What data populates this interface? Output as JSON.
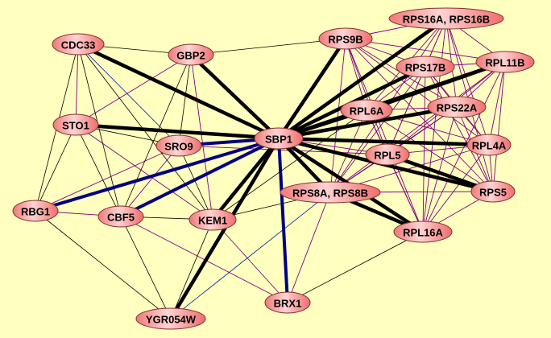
{
  "colors": {
    "background": "#ffffc0",
    "node_fill_light": "#ffd0d0",
    "node_fill_dark": "#f07070",
    "node_stroke": "#803030",
    "edge_black": "#000000",
    "edge_blue": "#000080",
    "edge_purple": "#800080",
    "edge_thin_blue": "#0020a0"
  },
  "nodes": [
    {
      "id": "CDC33",
      "label": "CDC33"
    },
    {
      "id": "GBP2",
      "label": "GBP2"
    },
    {
      "id": "STO1",
      "label": "STO1"
    },
    {
      "id": "SRO9",
      "label": "SRO9"
    },
    {
      "id": "SBP1",
      "label": "SBP1"
    },
    {
      "id": "RBG1",
      "label": "RBG1"
    },
    {
      "id": "CBF5",
      "label": "CBF5"
    },
    {
      "id": "KEM1",
      "label": "KEM1"
    },
    {
      "id": "YGR054W",
      "label": "YGR054W"
    },
    {
      "id": "BRX1",
      "label": "BRX1"
    },
    {
      "id": "RPS9B",
      "label": "RPS9B"
    },
    {
      "id": "RPS16",
      "label": "RPS16A, RPS16B"
    },
    {
      "id": "RPS17B",
      "label": "RPS17B"
    },
    {
      "id": "RPL11B",
      "label": "RPL11B"
    },
    {
      "id": "RPL6A",
      "label": "RPL6A"
    },
    {
      "id": "RPS22A",
      "label": "RPS22A"
    },
    {
      "id": "RPL5",
      "label": "RPL5"
    },
    {
      "id": "RPL4A",
      "label": "RPL4A"
    },
    {
      "id": "RPS8",
      "label": "RPS8A, RPS8B"
    },
    {
      "id": "RPS5",
      "label": "RPS5"
    },
    {
      "id": "RPL16A",
      "label": "RPL16A"
    }
  ],
  "edges": [
    [
      "CDC33",
      "GBP2",
      "thin-black"
    ],
    [
      "GBP2",
      "RPS9B",
      "thin-black"
    ],
    [
      "CDC33",
      "RBG1",
      "thin-black"
    ],
    [
      "CDC33",
      "CBF5",
      "thin-black"
    ],
    [
      "CDC33",
      "KEM1",
      "thin-black"
    ],
    [
      "STO1",
      "RBG1",
      "thin-black"
    ],
    [
      "STO1",
      "CBF5",
      "thin-black"
    ],
    [
      "STO1",
      "SRO9",
      "thin-black"
    ],
    [
      "GBP2",
      "CBF5",
      "thin-black"
    ],
    [
      "GBP2",
      "SRO9",
      "thin-black"
    ],
    [
      "SRO9",
      "KEM1",
      "thin-black"
    ],
    [
      "CBF5",
      "KEM1",
      "thin-black"
    ],
    [
      "RBG1",
      "YGR054W",
      "thin-black"
    ],
    [
      "CBF5",
      "YGR054W",
      "thin-black"
    ],
    [
      "KEM1",
      "YGR054W",
      "thin-black"
    ],
    [
      "KEM1",
      "RPS8",
      "thin-black"
    ],
    [
      "KEM1",
      "RPL6A",
      "thin-black"
    ],
    [
      "BRX1",
      "RPL16A",
      "thin-black"
    ],
    [
      "CDC33",
      "STO1",
      "purple"
    ],
    [
      "GBP2",
      "STO1",
      "purple"
    ],
    [
      "GBP2",
      "KEM1",
      "purple"
    ],
    [
      "SRO9",
      "RBG1",
      "purple"
    ],
    [
      "SRO9",
      "CBF5",
      "purple"
    ],
    [
      "STO1",
      "KEM1",
      "purple"
    ],
    [
      "RBG1",
      "CBF5",
      "purple"
    ],
    [
      "CBF5",
      "BRX1",
      "purple"
    ],
    [
      "KEM1",
      "BRX1",
      "purple"
    ],
    [
      "SRO9",
      "RPL5",
      "purple"
    ],
    [
      "SBP1",
      "RPL5",
      "purple"
    ],
    [
      "BRX1",
      "RPS8",
      "purple"
    ],
    [
      "CDC33",
      "SRO9",
      "thin-blue"
    ],
    [
      "YGR054W",
      "RPS8",
      "thin-blue"
    ],
    [
      "SBP1",
      "SRO9",
      "thick-blue"
    ],
    [
      "SBP1",
      "RBG1",
      "thick-blue"
    ],
    [
      "SBP1",
      "CBF5",
      "thick-blue"
    ],
    [
      "SBP1",
      "BRX1",
      "thick-blue"
    ],
    [
      "SBP1",
      "CDC33",
      "thick-black"
    ],
    [
      "SBP1",
      "GBP2",
      "thick-black"
    ],
    [
      "SBP1",
      "STO1",
      "thick-black"
    ],
    [
      "SBP1",
      "YGR054W",
      "thick-black"
    ],
    [
      "SBP1",
      "KEM1",
      "thick-black"
    ],
    [
      "SBP1",
      "RPS9B",
      "thick-black"
    ],
    [
      "SBP1",
      "RPS16",
      "thick-black"
    ],
    [
      "SBP1",
      "RPS17B",
      "thick-black"
    ],
    [
      "SBP1",
      "RPL11B",
      "thick-black"
    ],
    [
      "SBP1",
      "RPL6A",
      "thick-black"
    ],
    [
      "SBP1",
      "RPS22A",
      "thick-black"
    ],
    [
      "SBP1",
      "RPL4A",
      "thick-black"
    ],
    [
      "SBP1",
      "RPS5",
      "thick-black"
    ],
    [
      "SBP1",
      "RPS8",
      "thick-black"
    ],
    [
      "SBP1",
      "RPL16A",
      "thick-black"
    ],
    [
      "RPL6A",
      "RPL11B",
      "thick-black"
    ],
    [
      "RPL5",
      "RPS5",
      "thick-black"
    ],
    [
      "RPS8",
      "RPL16A",
      "thick-black"
    ]
  ],
  "clique": {
    "members": [
      "RPS9B",
      "RPS16",
      "RPS17B",
      "RPL11B",
      "RPL6A",
      "RPS22A",
      "RPL5",
      "RPL4A",
      "RPS8",
      "RPS5",
      "RPL16A"
    ],
    "edge_type": "purple"
  }
}
